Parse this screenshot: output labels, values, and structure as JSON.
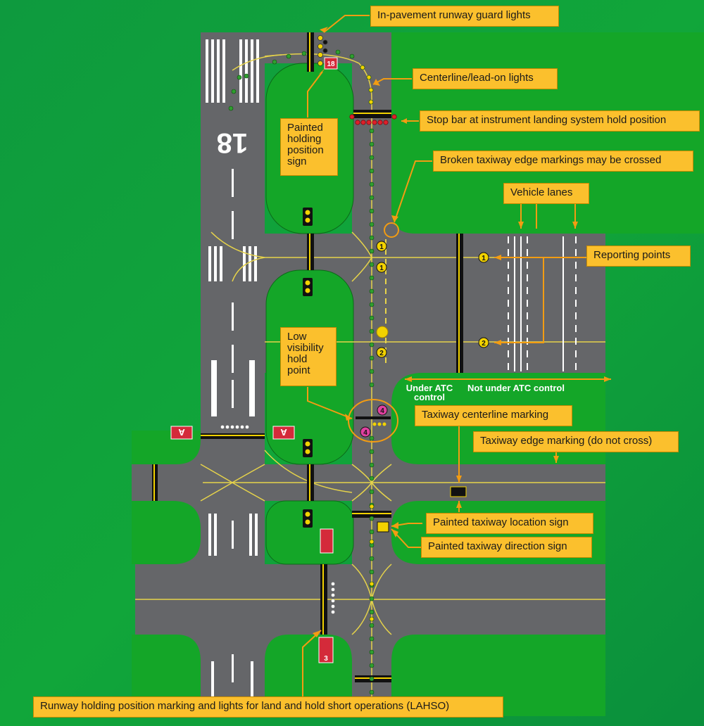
{
  "colors": {
    "background": "#0b9a3a",
    "grass": "#14a628",
    "pavement": "#656669",
    "callout": "#fbc02d",
    "leader": "#f39c12",
    "centerline_light": "#2f9e2f",
    "lead_on_light": "#f2d200",
    "stop_bar_light": "#e0202a",
    "sign_red": "#d42a3a"
  },
  "callouts": {
    "guard_lights": "In-pavement runway guard lights",
    "centerline_lights": "Centerline/lead-on lights",
    "stop_bar": "Stop bar at instrument landing system hold position",
    "broken_edge": "Broken taxiway edge markings may be crossed",
    "vehicle_lanes": "Vehicle lanes",
    "reporting_points": "Reporting points",
    "painted_holding_sign": "Painted holding position sign",
    "low_visibility": "Low visibility hold point",
    "taxiway_centerline": "Taxiway centerline marking",
    "taxiway_edge": "Taxiway edge marking (do not cross)",
    "taxiway_location_sign": "Painted taxiway location sign",
    "taxiway_direction_sign": "Painted taxiway direction sign",
    "lahso": "Runway holding position marking and lights for land and hold short operations (LAHSO)"
  },
  "control_labels": {
    "under_atc": "Under ATC control",
    "not_under_atc": "Not under ATC control"
  },
  "runway": {
    "number": "18"
  },
  "signs": {
    "runway_18_sign": "18",
    "taxiway_a_left": "A",
    "taxiway_a_right": "A",
    "runway_3_sign": "3"
  },
  "reporting_points": [
    "1",
    "1",
    "1",
    "2",
    "2"
  ],
  "low_visibility_points": [
    "4",
    "4"
  ]
}
